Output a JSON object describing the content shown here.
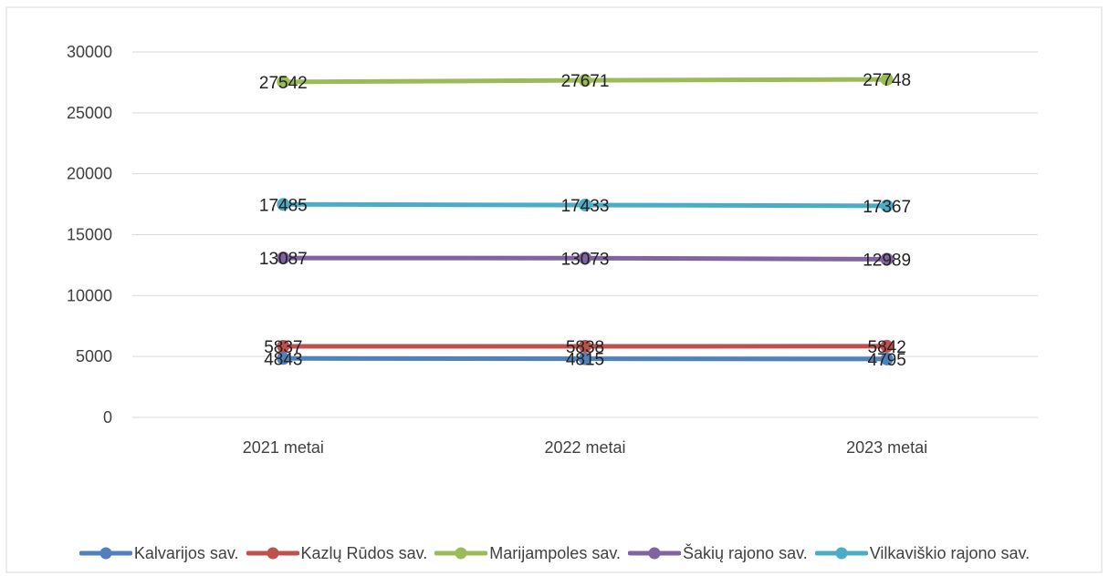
{
  "chart_data": {
    "type": "line",
    "title": "",
    "xlabel": "",
    "ylabel": "",
    "categories": [
      "2021 metai",
      "2022 metai",
      "2023 metai"
    ],
    "ylim": [
      0,
      30000
    ],
    "yticks": [
      0,
      5000,
      10000,
      15000,
      20000,
      25000,
      30000
    ],
    "grid": true,
    "legend_position": "bottom",
    "series": [
      {
        "name": "Kalvarijos sav.",
        "color": "#4f81bd",
        "values": [
          4843,
          4815,
          4795
        ]
      },
      {
        "name": "Kazlų Rūdos sav.",
        "color": "#c0504d",
        "values": [
          5837,
          5838,
          5842
        ]
      },
      {
        "name": "Marijampoles sav.",
        "color": "#9bbb59",
        "values": [
          27542,
          27671,
          27748
        ]
      },
      {
        "name": "Šakių rajono sav.",
        "color": "#8064a2",
        "values": [
          13087,
          13073,
          12989
        ]
      },
      {
        "name": "Vilkaviškio rajono sav.",
        "color": "#4bacc6",
        "values": [
          17485,
          17433,
          17367
        ]
      }
    ]
  }
}
